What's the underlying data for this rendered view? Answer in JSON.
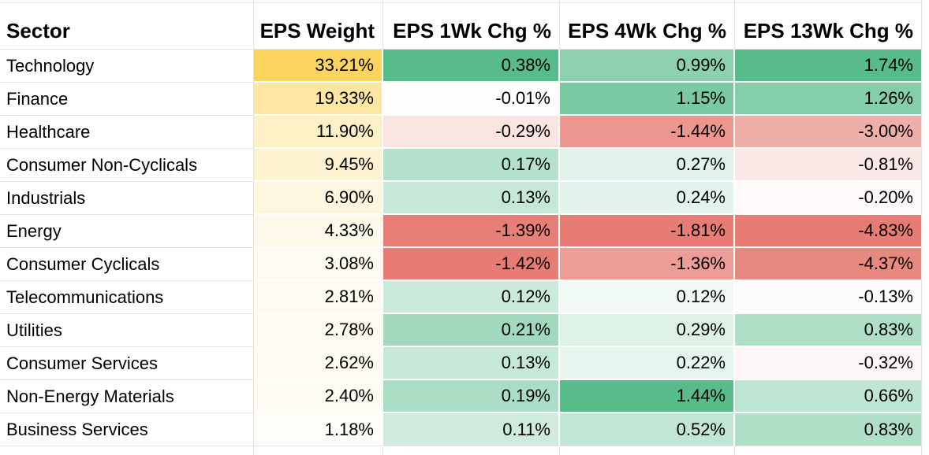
{
  "colors": {
    "grid_line": "#e2e2e2",
    "background": "#ffffff",
    "text": "#000000",
    "scale_positive_max_green": "#57bb8a",
    "scale_negative_max_red": "#e67c73",
    "scale_weight_max_gold": "#fad45e",
    "scale_midpoint_white": "#ffffff"
  },
  "table": {
    "columns": [
      {
        "label": "Sector"
      },
      {
        "label": "EPS Weight"
      },
      {
        "label": "EPS 1Wk Chg %"
      },
      {
        "label": "EPS 4Wk Chg %"
      },
      {
        "label": "EPS 13Wk Chg %"
      }
    ],
    "rows": [
      {
        "sector": "Technology",
        "cells": [
          {
            "text": "33.21%",
            "bg": "#FAD45E"
          },
          {
            "text": "0.38%",
            "bg": "#57BB8A"
          },
          {
            "text": "0.99%",
            "bg": "#8CD0AF"
          },
          {
            "text": "1.74%",
            "bg": "#57BB8A"
          }
        ]
      },
      {
        "sector": "Finance",
        "cells": [
          {
            "text": "19.33%",
            "bg": "#FCE6A1"
          },
          {
            "text": "-0.01%",
            "bg": "#FFFEFE"
          },
          {
            "text": "1.15%",
            "bg": "#79C9A2"
          },
          {
            "text": "1.26%",
            "bg": "#85CEAA"
          }
        ]
      },
      {
        "sector": "Healthcare",
        "cells": [
          {
            "text": "11.90%",
            "bg": "#FDF0C5"
          },
          {
            "text": "-0.29%",
            "bg": "#FAE4E2"
          },
          {
            "text": "-1.44%",
            "bg": "#EB9790"
          },
          {
            "text": "-3.00%",
            "bg": "#EFAEA8"
          }
        ]
      },
      {
        "sector": "Consumer Non-Cyclicals",
        "cells": [
          {
            "text": "9.45%",
            "bg": "#FEF3D1"
          },
          {
            "text": "0.17%",
            "bg": "#B4E1CB"
          },
          {
            "text": "0.27%",
            "bg": "#E0F2E9"
          },
          {
            "text": "-0.81%",
            "bg": "#FBE9E8"
          }
        ]
      },
      {
        "sector": "Industrials",
        "cells": [
          {
            "text": "6.90%",
            "bg": "#FEF6DE"
          },
          {
            "text": "0.13%",
            "bg": "#C6E8D7"
          },
          {
            "text": "0.24%",
            "bg": "#E3F4EC"
          },
          {
            "text": "-0.20%",
            "bg": "#FEFAF9"
          }
        ]
      },
      {
        "sector": "Energy",
        "cells": [
          {
            "text": "4.33%",
            "bg": "#FEF9EA"
          },
          {
            "text": "-1.39%",
            "bg": "#E77F76"
          },
          {
            "text": "-1.81%",
            "bg": "#E67C73"
          },
          {
            "text": "-4.83%",
            "bg": "#E67C73"
          }
        ]
      },
      {
        "sector": "Consumer Cyclicals",
        "cells": [
          {
            "text": "3.08%",
            "bg": "#FFFBF0"
          },
          {
            "text": "-1.42%",
            "bg": "#E67C73"
          },
          {
            "text": "-1.36%",
            "bg": "#EC9D96"
          },
          {
            "text": "-4.37%",
            "bg": "#E88980"
          }
        ]
      },
      {
        "sector": "Telecommunications",
        "cells": [
          {
            "text": "2.81%",
            "bg": "#FFFBF1"
          },
          {
            "text": "0.12%",
            "bg": "#CAEADA"
          },
          {
            "text": "0.12%",
            "bg": "#F1F9F5"
          },
          {
            "text": "-0.13%",
            "bg": "#FEFCFB"
          }
        ]
      },
      {
        "sector": "Utilities",
        "cells": [
          {
            "text": "2.78%",
            "bg": "#FFFBF2"
          },
          {
            "text": "0.21%",
            "bg": "#A2D9BE"
          },
          {
            "text": "0.29%",
            "bg": "#DDF1E7"
          },
          {
            "text": "0.83%",
            "bg": "#AFDFC7"
          }
        ]
      },
      {
        "sector": "Consumer Services",
        "cells": [
          {
            "text": "2.62%",
            "bg": "#FFFCF2"
          },
          {
            "text": "0.13%",
            "bg": "#C6E8D7"
          },
          {
            "text": "0.22%",
            "bg": "#E5F5ED"
          },
          {
            "text": "-0.32%",
            "bg": "#FDF6F6"
          }
        ]
      },
      {
        "sector": "Non-Energy Materials",
        "cells": [
          {
            "text": "2.40%",
            "bg": "#FFFCF3"
          },
          {
            "text": "0.19%",
            "bg": "#ABDDC5"
          },
          {
            "text": "1.44%",
            "bg": "#57BB8A"
          },
          {
            "text": "0.66%",
            "bg": "#BFE5D3"
          }
        ]
      },
      {
        "sector": "Business Services",
        "cells": [
          {
            "text": "1.18%",
            "bg": "#FFFEF9"
          },
          {
            "text": "0.11%",
            "bg": "#CEEBDD"
          },
          {
            "text": "0.52%",
            "bg": "#C2E6D5"
          },
          {
            "text": "0.83%",
            "bg": "#AFDFC7"
          }
        ]
      }
    ]
  }
}
